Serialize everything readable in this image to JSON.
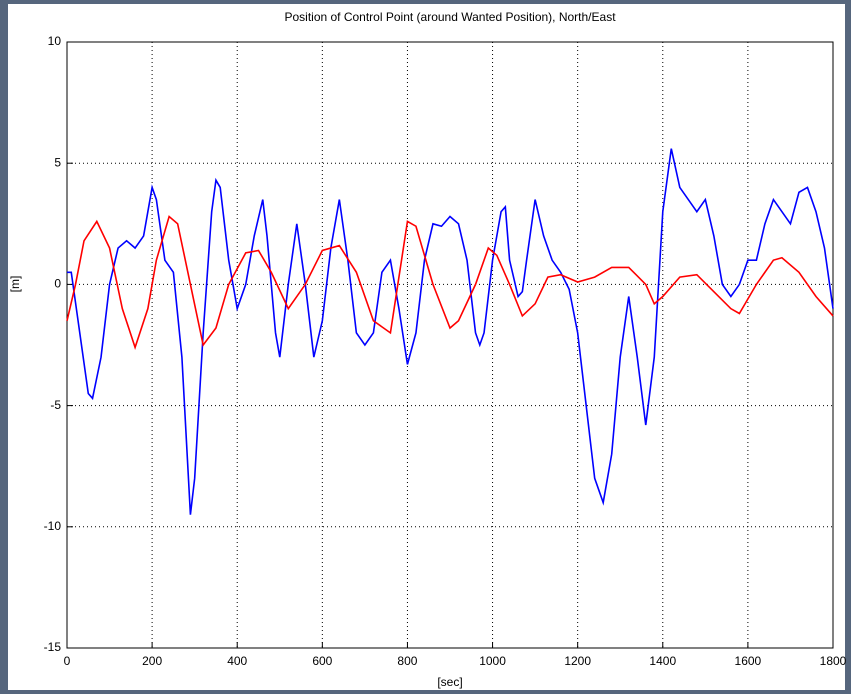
{
  "chart_data": {
    "type": "line",
    "title": "Position of Control Point (around Wanted Position), North/East",
    "xlabel": "[sec]",
    "ylabel": "[m]",
    "xlim": [
      0,
      1800
    ],
    "xticks": [
      0,
      200,
      400,
      600,
      800,
      1000,
      1200,
      1400,
      1600,
      1800
    ],
    "ylim": [
      -15,
      10
    ],
    "yticks": [
      -15,
      -10,
      -5,
      0,
      5,
      10
    ],
    "grid": true,
    "series": [
      {
        "name": "North",
        "color": "#0000ff",
        "x": [
          0,
          10,
          30,
          50,
          60,
          80,
          100,
          120,
          140,
          160,
          180,
          200,
          210,
          230,
          250,
          270,
          290,
          300,
          320,
          340,
          350,
          360,
          380,
          400,
          420,
          440,
          460,
          470,
          490,
          500,
          520,
          540,
          560,
          580,
          600,
          620,
          640,
          660,
          680,
          700,
          720,
          740,
          760,
          780,
          800,
          820,
          840,
          860,
          880,
          900,
          920,
          940,
          960,
          970,
          980,
          1000,
          1020,
          1030,
          1040,
          1060,
          1070,
          1080,
          1100,
          1120,
          1140,
          1160,
          1180,
          1200,
          1220,
          1240,
          1260,
          1280,
          1300,
          1320,
          1340,
          1360,
          1380,
          1400,
          1420,
          1440,
          1460,
          1480,
          1500,
          1520,
          1540,
          1560,
          1580,
          1600,
          1620,
          1640,
          1660,
          1680,
          1700,
          1720,
          1740,
          1760,
          1780,
          1800
        ],
        "values": [
          0.5,
          0.5,
          -2,
          -4.5,
          -4.7,
          -3,
          0,
          1.5,
          1.8,
          1.5,
          2,
          4,
          3.5,
          1,
          0.5,
          -3,
          -9.5,
          -8,
          -2,
          3,
          4.3,
          4,
          1,
          -1,
          0,
          2,
          3.5,
          2,
          -2,
          -3,
          0,
          2.5,
          0,
          -3,
          -1.5,
          1.5,
          3.5,
          1,
          -2,
          -2.5,
          -2,
          0.5,
          1,
          -1,
          -3.3,
          -2,
          1,
          2.5,
          2.4,
          2.8,
          2.5,
          1,
          -2,
          -2.5,
          -2,
          1,
          3,
          3.2,
          1,
          -0.5,
          -0.3,
          1,
          3.5,
          2,
          1,
          0.5,
          -0.2,
          -2,
          -5,
          -8,
          -9,
          -7,
          -3,
          -0.5,
          -3,
          -5.8,
          -3,
          3,
          5.6,
          4,
          3.5,
          3,
          3.5,
          2,
          0,
          -0.5,
          0,
          1,
          1,
          2.5,
          3.5,
          3,
          2.5,
          3.8,
          4,
          3,
          1.5,
          -1
        ]
      },
      {
        "name": "East",
        "color": "#ff0000",
        "x": [
          0,
          20,
          40,
          70,
          100,
          130,
          160,
          190,
          210,
          240,
          260,
          290,
          320,
          350,
          380,
          420,
          450,
          480,
          520,
          560,
          600,
          640,
          680,
          720,
          760,
          800,
          820,
          860,
          900,
          920,
          960,
          990,
          1010,
          1040,
          1070,
          1100,
          1130,
          1160,
          1200,
          1240,
          1280,
          1320,
          1360,
          1380,
          1400,
          1440,
          1480,
          1520,
          1560,
          1580,
          1620,
          1660,
          1680,
          1720,
          1760,
          1800
        ],
        "values": [
          -1.5,
          0,
          1.8,
          2.6,
          1.5,
          -1,
          -2.6,
          -1,
          1,
          2.8,
          2.5,
          0,
          -2.5,
          -1.8,
          0,
          1.3,
          1.4,
          0.5,
          -1,
          0,
          1.4,
          1.6,
          0.5,
          -1.5,
          -2,
          2.6,
          2.4,
          0,
          -1.8,
          -1.5,
          0,
          1.5,
          1.2,
          0,
          -1.3,
          -0.8,
          0.3,
          0.4,
          0.1,
          0.3,
          0.7,
          0.7,
          0,
          -0.8,
          -0.5,
          0.3,
          0.4,
          -0.3,
          -1,
          -1.2,
          0,
          1,
          1.1,
          0.5,
          -0.5,
          -1.3
        ]
      }
    ]
  }
}
